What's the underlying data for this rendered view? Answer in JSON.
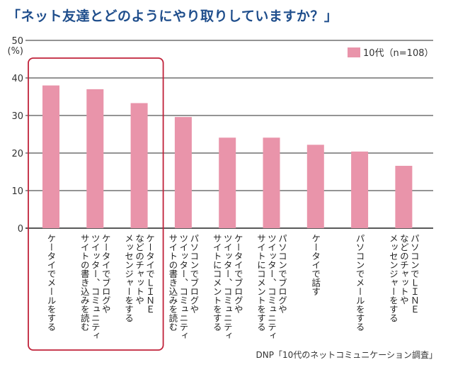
{
  "chart_data": {
    "type": "bar",
    "title": "「ネット友達とどのようにやり取りしていますか？」",
    "ylabel": "(%)",
    "ylim": [
      0,
      50
    ],
    "yticks": [
      0,
      10,
      20,
      30,
      40,
      50
    ],
    "grid": true,
    "legend_position": "top-right",
    "series": [
      {
        "name": "10代（n=108）",
        "color": "#e994aa",
        "values": [
          38.0,
          37.0,
          33.3,
          29.6,
          24.1,
          24.1,
          22.2,
          20.4,
          16.6
        ]
      }
    ],
    "categories": [
      [
        "ケータイでメールをする"
      ],
      [
        "ケータイでブログや",
        "ツイッター、コミュニティ",
        "サイトの書き込みを読む"
      ],
      [
        "ケータイでＬＩＮＥ",
        "などのチャットや",
        "メッセンジャーをする"
      ],
      [
        "パソコンでブログや",
        "ツイッター、コミュニティ",
        "サイトの書き込みを読む"
      ],
      [
        "ケータイでブログや",
        "ツイッター、コミュニティ",
        "サイトにコメントをする"
      ],
      [
        "パソコンでブログや",
        "ツイッター、コミュニティ",
        "サイトにコメントをする"
      ],
      [
        "ケータイで話す"
      ],
      [
        "パソコンでメールをする"
      ],
      [
        "パソコンでＬＩＮＥ",
        "などのチャットや",
        "メッセンジャーをする"
      ]
    ],
    "highlight_box_color": "#c0223a",
    "highlighted_categories": [
      0,
      1,
      2
    ],
    "source": "DNP「10代のネットコミュニケーション調査」"
  }
}
